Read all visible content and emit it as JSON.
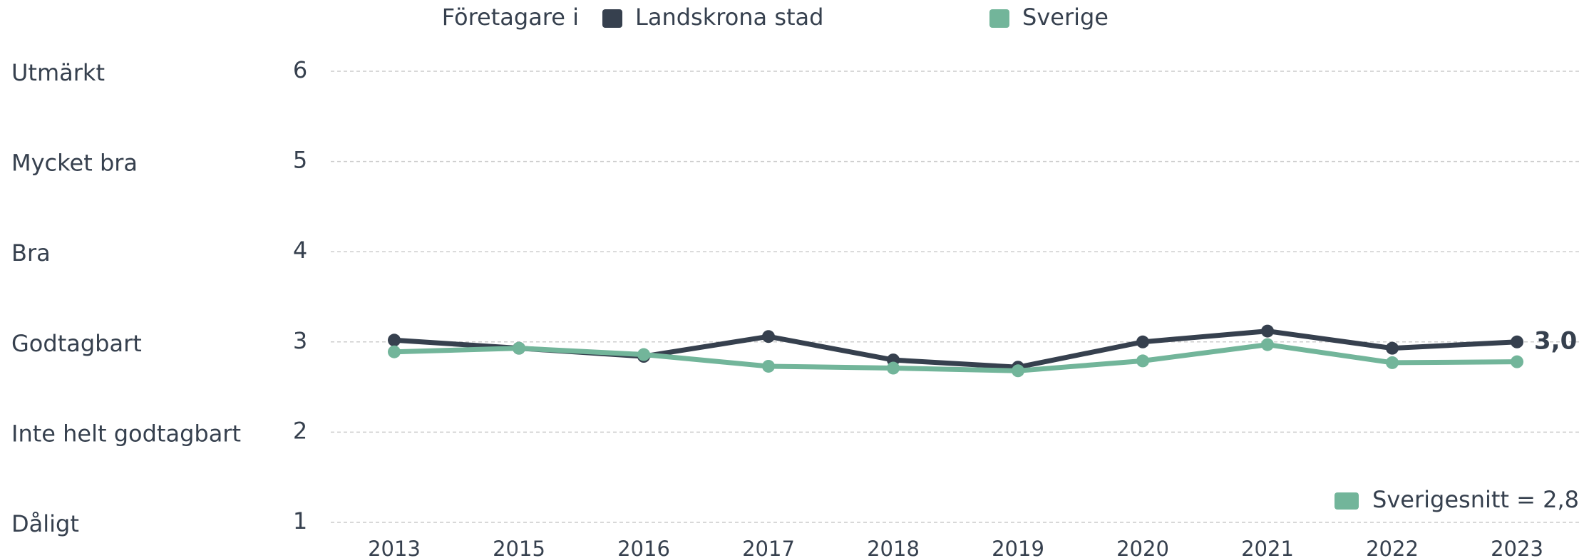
{
  "chart_data": {
    "type": "line",
    "legend_title": "Företagare i",
    "categories": [
      "2013",
      "2015",
      "2016",
      "2017",
      "2018",
      "2019",
      "2020",
      "2021",
      "2022",
      "2023"
    ],
    "series": [
      {
        "name": "Landskrona stad",
        "color": "#36404e",
        "values": [
          3.02,
          2.93,
          2.84,
          3.06,
          2.8,
          2.72,
          3.0,
          3.12,
          2.93,
          3.0
        ],
        "value_labels": [
          null,
          null,
          null,
          null,
          null,
          null,
          null,
          null,
          null,
          "3,0"
        ]
      },
      {
        "name": "Sverige",
        "color": "#72b59a",
        "values": [
          2.89,
          2.93,
          2.86,
          2.73,
          2.71,
          2.68,
          2.79,
          2.97,
          2.77,
          2.78
        ]
      }
    ],
    "ylim": [
      1,
      6
    ],
    "yticks": [
      1,
      2,
      3,
      4,
      5,
      6
    ],
    "scale_labels": [
      "Dåligt",
      "Inte helt godtagbart",
      "Godtagbart",
      "Bra",
      "Mycket bra",
      "Utmärkt"
    ],
    "annotation": {
      "text": "Sverigesnitt = 2,8",
      "color": "#72b59a"
    },
    "grid": true
  }
}
